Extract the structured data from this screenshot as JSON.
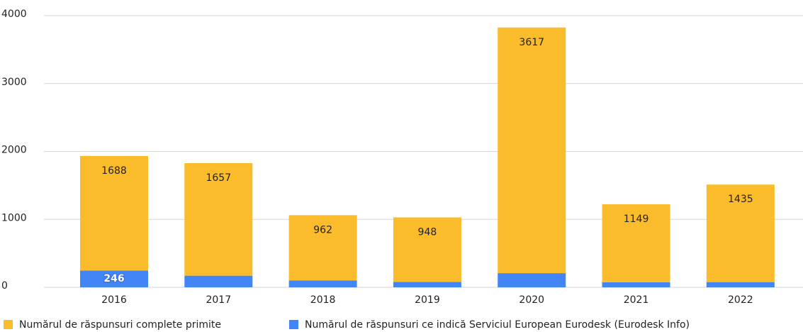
{
  "chart_data": {
    "type": "stacked_bar",
    "categories": [
      "2016",
      "2017",
      "2018",
      "2019",
      "2020",
      "2021",
      "2022"
    ],
    "series": [
      {
        "name": "Numărul de răspunsuri ce indică Serviciul European Eurodesk (Eurodesk Info)",
        "color": "#4285f4",
        "values": [
          246,
          171,
          100,
          81,
          208,
          74,
          77
        ]
      },
      {
        "name": "Numărul de răspunsuri complete primite",
        "color": "#fbbc2b",
        "values": [
          1688,
          1657,
          962,
          948,
          3617,
          1149,
          1435
        ]
      }
    ],
    "ylim": [
      0,
      4000
    ],
    "yticks": [
      0,
      1000,
      2000,
      3000,
      4000
    ],
    "grid": true
  }
}
